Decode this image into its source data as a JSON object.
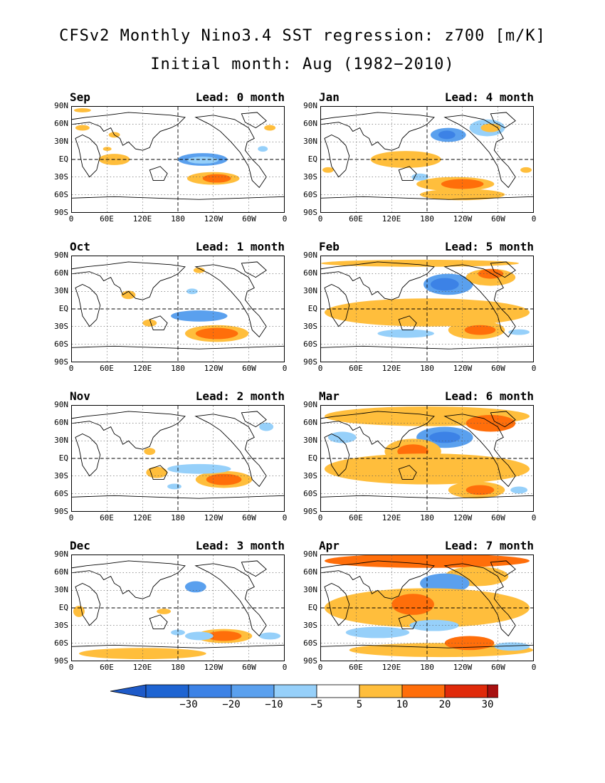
{
  "title": {
    "line1": "CFSv2 Monthly Nino3.4 SST regression: z700 [m/K]",
    "line2": "Initial month: Aug (1982−2010)"
  },
  "axes": {
    "lat_labels": [
      "90N",
      "60N",
      "30N",
      "EQ",
      "30S",
      "60S",
      "90S"
    ],
    "lon_labels": [
      "0",
      "60E",
      "120E",
      "180",
      "120W",
      "60W",
      "0"
    ]
  },
  "panels": [
    {
      "month": "Sep",
      "lead": "Lead: 0 month"
    },
    {
      "month": "Jan",
      "lead": "Lead: 4 month"
    },
    {
      "month": "Oct",
      "lead": "Lead: 1 month"
    },
    {
      "month": "Feb",
      "lead": "Lead: 5 month"
    },
    {
      "month": "Nov",
      "lead": "Lead: 2 month"
    },
    {
      "month": "Mar",
      "lead": "Lead: 6 month"
    },
    {
      "month": "Dec",
      "lead": "Lead: 3 month"
    },
    {
      "month": "Apr",
      "lead": "Lead: 7 month"
    }
  ],
  "colorbar": {
    "labels": [
      "−30",
      "−20",
      "−10",
      "−5",
      "5",
      "10",
      "20",
      "30"
    ],
    "colors": [
      "#1e64d2",
      "#3c82e6",
      "#5aa0ee",
      "#96d0fa",
      "#ffffff",
      "#ffbe3c",
      "#ff6e0a",
      "#e02a0a",
      "#a81010"
    ],
    "neg_tip": "#1e5ac8",
    "pos_tip": "#a00a0a"
  }
}
